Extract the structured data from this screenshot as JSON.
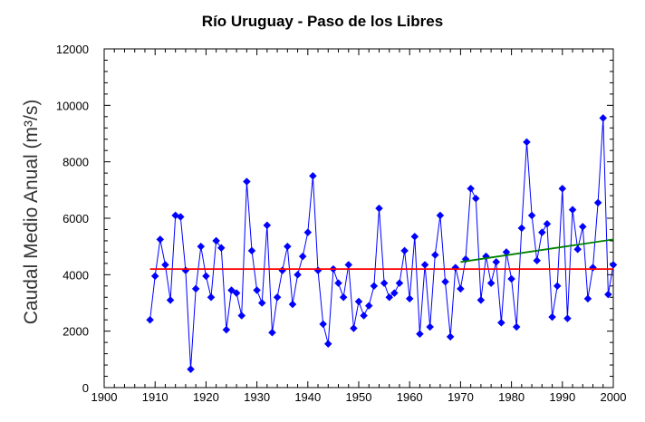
{
  "chart_data": {
    "type": "line",
    "title": "Río Uruguay - Paso de los Libres",
    "xlabel": "",
    "ylabel": "Caudal Medio Anual (m³/s)",
    "xlim": [
      1900,
      2000
    ],
    "ylim": [
      0,
      12000
    ],
    "x_ticks": [
      1900,
      1910,
      1920,
      1930,
      1940,
      1950,
      1960,
      1970,
      1980,
      1990,
      2000
    ],
    "y_ticks": [
      0,
      2000,
      4000,
      6000,
      8000,
      10000,
      12000
    ],
    "grid": false,
    "series": [
      {
        "color": "#0000ff",
        "marker": "diamond",
        "x": [
          1909,
          1910,
          1911,
          1912,
          1913,
          1914,
          1915,
          1916,
          1917,
          1918,
          1919,
          1920,
          1921,
          1922,
          1923,
          1924,
          1925,
          1926,
          1927,
          1928,
          1929,
          1930,
          1931,
          1932,
          1933,
          1934,
          1935,
          1936,
          1937,
          1938,
          1939,
          1940,
          1941,
          1942,
          1943,
          1944,
          1945,
          1946,
          1947,
          1948,
          1949,
          1950,
          1951,
          1952,
          1953,
          1954,
          1955,
          1956,
          1957,
          1958,
          1959,
          1960,
          1961,
          1962,
          1963,
          1964,
          1965,
          1966,
          1967,
          1968,
          1969,
          1970,
          1971,
          1972,
          1973,
          1974,
          1975,
          1976,
          1977,
          1978,
          1979,
          1980,
          1981,
          1982,
          1983,
          1984,
          1985,
          1986,
          1987,
          1988,
          1989,
          1990,
          1991,
          1992,
          1993,
          1994,
          1995,
          1996,
          1997,
          1998,
          1999,
          2000
        ],
        "y": [
          2400,
          3950,
          5250,
          4350,
          3100,
          6100,
          6050,
          4150,
          650,
          3500,
          5000,
          3950,
          3200,
          5200,
          4950,
          2050,
          3450,
          3350,
          2550,
          7300,
          4850,
          3450,
          3000,
          5750,
          1950,
          3200,
          4150,
          5000,
          2950,
          4000,
          4650,
          5500,
          7500,
          4150,
          2250,
          1550,
          4200,
          3700,
          3200,
          4350,
          2100,
          3050,
          2550,
          2900,
          3600,
          6350,
          3700,
          3200,
          3350,
          3700,
          4850,
          3150,
          5350,
          1900,
          4350,
          2150,
          4700,
          6100,
          3750,
          1800,
          4250,
          3500,
          4550,
          7050,
          6700,
          3100,
          4650,
          3700,
          4450,
          2300,
          4800,
          3850,
          2150,
          5650,
          8700,
          6100,
          4500,
          5500,
          5800,
          2500,
          3600,
          7050,
          2450,
          6300,
          4900,
          5700,
          3150,
          4250,
          6550,
          9550,
          3300,
          4350
        ]
      },
      {
        "color": "#ff0000",
        "marker": "none",
        "x": [
          1909,
          2000
        ],
        "y": [
          4200,
          4200
        ]
      },
      {
        "color": "#008000",
        "marker": "none",
        "x": [
          1970,
          2000
        ],
        "y": [
          4450,
          5250
        ]
      }
    ]
  }
}
